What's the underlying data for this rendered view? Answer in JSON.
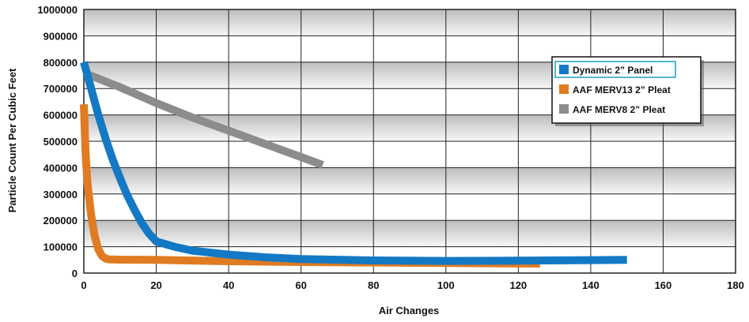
{
  "chart_data": {
    "type": "line",
    "title": "",
    "xlabel": "Air Changes",
    "ylabel": "Particle Count Per Cubic Feet",
    "xlim": [
      0,
      180
    ],
    "ylim": [
      0,
      1000000
    ],
    "x_ticks": [
      "0",
      "20",
      "40",
      "60",
      "80",
      "100",
      "120",
      "140",
      "160",
      "180"
    ],
    "y_ticks": [
      "0",
      "100000",
      "200000",
      "300000",
      "400000",
      "500000",
      "600000",
      "700000",
      "800000",
      "900000",
      "1000000"
    ],
    "grid": true,
    "legend_position": "top-right",
    "series": [
      {
        "name": "Dynamic 2” Panel",
        "color": "#1479c4",
        "x": [
          0,
          2,
          4,
          6,
          8,
          10,
          12,
          14,
          16,
          18,
          20,
          25,
          30,
          40,
          50,
          60,
          80,
          100,
          120,
          140,
          150
        ],
        "y": [
          800000,
          700000,
          600000,
          510000,
          430000,
          360000,
          295000,
          240000,
          190000,
          150000,
          120000,
          100000,
          85000,
          70000,
          60000,
          53000,
          48000,
          46000,
          47000,
          49000,
          50000
        ]
      },
      {
        "name": "AAF MERV13  2” Pleat",
        "color": "#e07b22",
        "x": [
          0,
          0.5,
          1,
          2,
          3,
          4,
          5,
          6,
          7,
          10,
          20,
          40,
          60,
          80,
          100,
          126
        ],
        "y": [
          640000,
          450000,
          340000,
          220000,
          140000,
          90000,
          65000,
          55000,
          52000,
          51000,
          50000,
          45000,
          42000,
          40000,
          38000,
          36000
        ]
      },
      {
        "name": "AAF MERV8  2” Pleat",
        "color": "#8c8c8c",
        "x": [
          0,
          10,
          20,
          30,
          40,
          50,
          60,
          66
        ],
        "y": [
          760000,
          705000,
          645000,
          590000,
          540000,
          490000,
          440000,
          410000
        ]
      }
    ]
  }
}
